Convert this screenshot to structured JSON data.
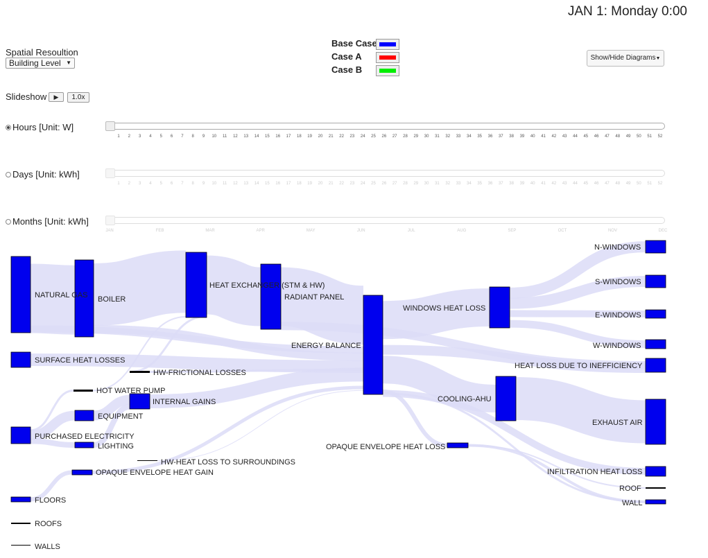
{
  "header": {
    "datetime": "JAN 1: Monday 0:00"
  },
  "controls": {
    "resolution_label": "Spatial Resoultion",
    "resolution_value": "Building Level",
    "showhide_label": "Show/Hide Diagrams",
    "slideshow_label": "Slideshow",
    "play_icon": "play-icon",
    "speed_label": "1.0x"
  },
  "legend": [
    {
      "label": "Base Case",
      "color": "#0000ff"
    },
    {
      "label": "Case A",
      "color": "#ff0000"
    },
    {
      "label": "Case B",
      "color": "#00ee00"
    }
  ],
  "sliders": [
    {
      "label": "Hours [Unit: W]",
      "selected": true,
      "ticks": [
        "1",
        "2",
        "3",
        "4",
        "5",
        "6",
        "7",
        "8",
        "9",
        "10",
        "11",
        "12",
        "13",
        "14",
        "15",
        "16",
        "17",
        "18",
        "19",
        "20",
        "21",
        "22",
        "23",
        "24",
        "25",
        "26",
        "27",
        "28",
        "29",
        "30",
        "31",
        "32",
        "33",
        "34",
        "35",
        "36",
        "37",
        "38",
        "39",
        "40",
        "41",
        "42",
        "43",
        "44",
        "45",
        "46",
        "47",
        "48",
        "49",
        "50",
        "51",
        "52"
      ]
    },
    {
      "label": "Days [Unit: kWh]",
      "selected": false,
      "ticks": [
        "1",
        "2",
        "3",
        "4",
        "5",
        "6",
        "7",
        "8",
        "9",
        "10",
        "11",
        "12",
        "13",
        "14",
        "15",
        "16",
        "17",
        "18",
        "19",
        "20",
        "21",
        "22",
        "23",
        "24",
        "25",
        "26",
        "27",
        "28",
        "29",
        "30",
        "31",
        "32",
        "33",
        "34",
        "35",
        "36",
        "37",
        "38",
        "39",
        "40",
        "41",
        "42",
        "43",
        "44",
        "45",
        "46",
        "47",
        "48",
        "49",
        "50",
        "51",
        "52"
      ]
    },
    {
      "label": "Months [Unit: kWh]",
      "selected": false,
      "ticks": [
        "JAN",
        "FEB",
        "MAR",
        "APR",
        "MAY",
        "JUN",
        "JUL",
        "AUG",
        "SEP",
        "OCT",
        "NOV",
        "DEC"
      ]
    }
  ],
  "sankey": {
    "node_color": "#0000ee",
    "link_color": "#dcdcf7",
    "nodes": [
      {
        "id": "natural_gas",
        "label": "NATURAL GAS"
      },
      {
        "id": "surface_heat_losses",
        "label": "SURFACE HEAT LOSSES"
      },
      {
        "id": "purchased_electricity",
        "label": "PURCHASED ELECTRICITY"
      },
      {
        "id": "floors",
        "label": "FLOORS"
      },
      {
        "id": "roofs",
        "label": "ROOFS"
      },
      {
        "id": "walls",
        "label": "WALLS"
      },
      {
        "id": "boiler",
        "label": "BOILER"
      },
      {
        "id": "hot_water_pump",
        "label": "HOT WATER PUMP"
      },
      {
        "id": "equipment",
        "label": "EQUIPMENT"
      },
      {
        "id": "lighting",
        "label": "LIGHTING"
      },
      {
        "id": "opaque_envelope_heat_gain",
        "label": "OPAQUE ENVELOPE HEAT GAIN"
      },
      {
        "id": "hw_frictional_losses",
        "label": "HW-FRICTIONAL LOSSES"
      },
      {
        "id": "internal_gains",
        "label": "INTERNAL GAINS"
      },
      {
        "id": "hw_heat_loss_surroundings",
        "label": "HW-HEAT LOSS TO SURROUNDINGS"
      },
      {
        "id": "heat_exchanger",
        "label": "HEAT EXCHANGER (STM & HW)"
      },
      {
        "id": "radiant_panel",
        "label": "RADIANT PANEL"
      },
      {
        "id": "energy_balance",
        "label": "ENERGY BALANCE"
      },
      {
        "id": "opaque_envelope_heat_loss",
        "label": "OPAQUE ENVELOPE HEAT LOSS"
      },
      {
        "id": "windows_heat_loss",
        "label": "WINDOWS HEAT LOSS"
      },
      {
        "id": "cooling_ahu",
        "label": "COOLING-AHU"
      },
      {
        "id": "n_windows",
        "label": "N-WINDOWS"
      },
      {
        "id": "s_windows",
        "label": "S-WINDOWS"
      },
      {
        "id": "e_windows",
        "label": "E-WINDOWS"
      },
      {
        "id": "w_windows",
        "label": "W-WINDOWS"
      },
      {
        "id": "heat_loss_inefficiency",
        "label": "HEAT LOSS DUE TO INEFFICIENCY"
      },
      {
        "id": "exhaust_air",
        "label": "EXHAUST AIR"
      },
      {
        "id": "infiltration_heat_loss",
        "label": "INFILTRATION HEAT LOSS"
      },
      {
        "id": "roof",
        "label": "ROOF"
      },
      {
        "id": "wall",
        "label": "WALL"
      }
    ]
  }
}
